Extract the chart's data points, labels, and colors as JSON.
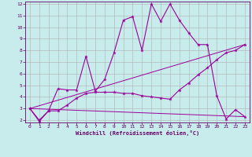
{
  "xlabel": "Windchill (Refroidissement éolien,°C)",
  "bg_color": "#c8ecec",
  "line_color": "#990099",
  "grid_color": "#b0b0b0",
  "xlim": [
    -0.5,
    23.5
  ],
  "ylim": [
    1.8,
    12.2
  ],
  "yticks": [
    2,
    3,
    4,
    5,
    6,
    7,
    8,
    9,
    10,
    11,
    12
  ],
  "xticks": [
    0,
    1,
    2,
    3,
    4,
    5,
    6,
    7,
    8,
    9,
    10,
    11,
    12,
    13,
    14,
    15,
    16,
    17,
    18,
    19,
    20,
    21,
    22,
    23
  ],
  "line1_x": [
    0,
    1,
    2,
    3,
    4,
    5,
    6,
    7,
    8,
    9,
    10,
    11,
    12,
    13,
    14,
    15,
    16,
    17,
    18,
    19,
    20,
    21,
    22,
    23
  ],
  "line1_y": [
    3.0,
    1.9,
    2.8,
    4.7,
    4.6,
    4.6,
    7.5,
    4.5,
    5.5,
    7.8,
    10.6,
    10.9,
    8.0,
    12.0,
    10.5,
    12.0,
    10.6,
    9.5,
    8.5,
    8.5,
    4.1,
    2.1,
    2.9,
    2.3
  ],
  "line2_x": [
    0,
    1,
    2,
    3,
    4,
    5,
    6,
    7,
    8,
    9,
    10,
    11,
    12,
    13,
    14,
    15,
    16,
    17,
    18,
    19,
    20,
    21,
    22,
    23
  ],
  "line2_y": [
    3.0,
    2.0,
    2.8,
    2.8,
    3.3,
    3.9,
    4.3,
    4.4,
    4.4,
    4.4,
    4.3,
    4.3,
    4.1,
    4.0,
    3.9,
    3.8,
    4.6,
    5.2,
    5.9,
    6.5,
    7.2,
    7.8,
    8.0,
    8.5
  ],
  "line3_x": [
    0,
    23
  ],
  "line3_y": [
    3.0,
    8.5
  ],
  "line4_x": [
    0,
    23
  ],
  "line4_y": [
    3.0,
    2.3
  ]
}
